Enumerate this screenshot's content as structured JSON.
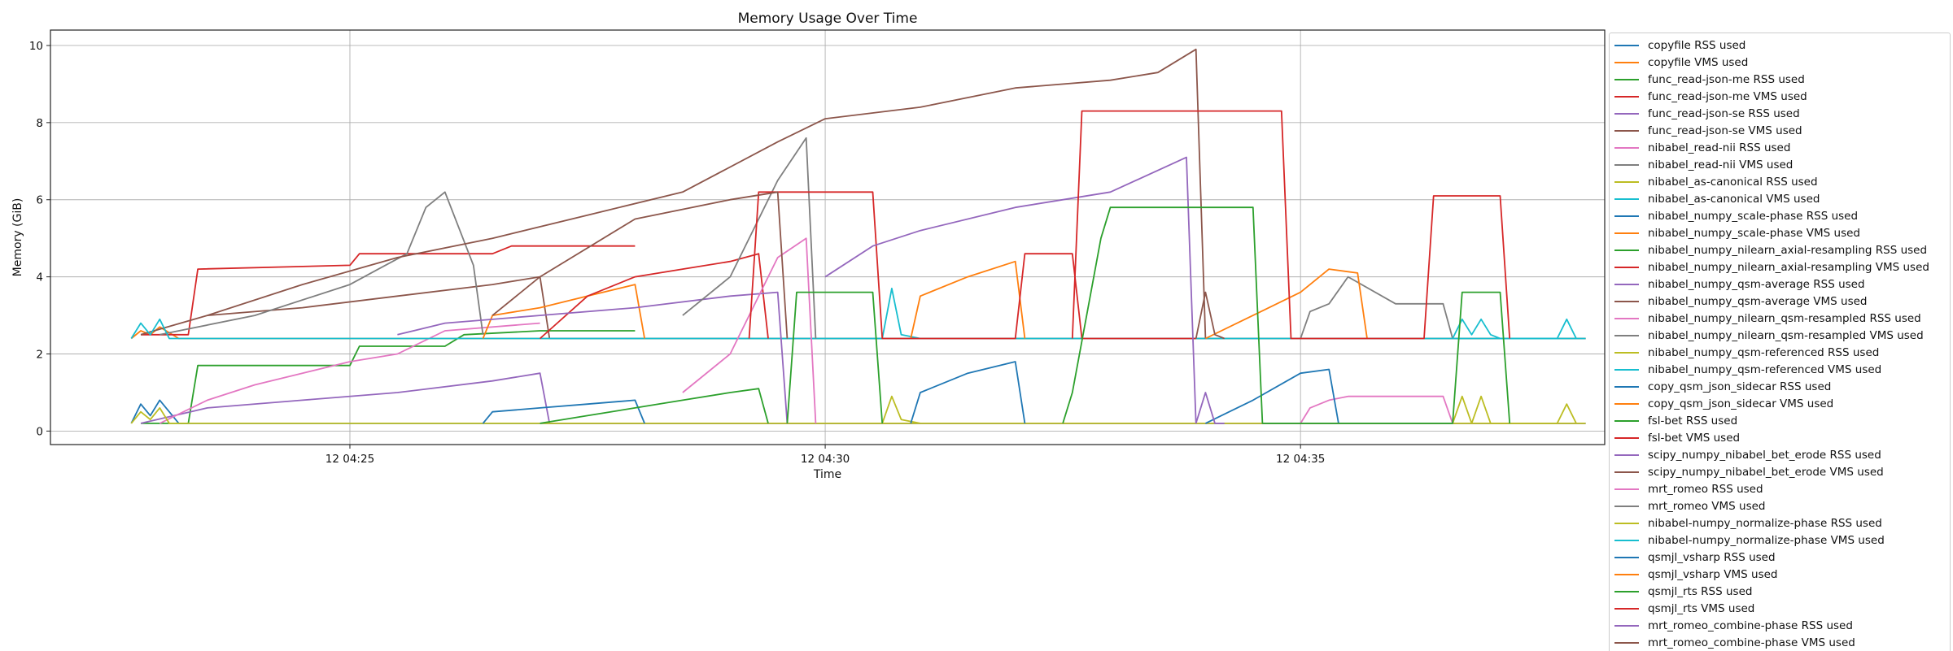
{
  "chart_data": {
    "type": "line",
    "title": "Memory Usage Over Time",
    "xlabel": "Time",
    "ylabel": "Memory (GiB)",
    "x_ticks": [
      "12 04:25",
      "12 04:30",
      "12 04:35"
    ],
    "x_tick_minutes": [
      25,
      30,
      35
    ],
    "xlim_minutes": [
      21.85,
      38.2
    ],
    "y_ticks": [
      "0",
      "2",
      "4",
      "6",
      "8",
      "10"
    ],
    "ylim": [
      -0.35,
      10.4
    ],
    "grid": true,
    "legend_position": "outside-right",
    "series": [
      {
        "name": "copyfile RSS used",
        "color": "#1f77b4",
        "x": [
          22.7,
          22.8,
          22.9,
          23.0,
          23.2,
          38.0
        ],
        "y": [
          0.2,
          0.7,
          0.4,
          0.8,
          0.2,
          0.2
        ]
      },
      {
        "name": "copyfile VMS used",
        "color": "#ff7f0e",
        "x": [
          22.7,
          22.8,
          22.9,
          23.0,
          23.2,
          38.0
        ],
        "y": [
          2.4,
          2.6,
          2.5,
          2.7,
          2.4,
          2.4
        ]
      },
      {
        "name": "func_read-json-me RSS used",
        "color": "#2ca02c",
        "x": [
          22.8,
          23.3,
          23.4,
          25.0,
          25.1,
          26.0,
          26.2,
          27.0,
          27.2,
          28.0
        ],
        "y": [
          0.2,
          0.2,
          1.7,
          1.7,
          2.2,
          2.2,
          2.5,
          2.6,
          2.6,
          2.6
        ]
      },
      {
        "name": "func_read-json-me VMS used",
        "color": "#d62728",
        "x": [
          22.8,
          23.3,
          23.4,
          25.0,
          25.1,
          26.5,
          26.7,
          28.0
        ],
        "y": [
          2.5,
          2.5,
          4.2,
          4.3,
          4.6,
          4.6,
          4.8,
          4.8
        ]
      },
      {
        "name": "func_read-json-se RSS used",
        "color": "#9467bd",
        "x": [
          22.8,
          23.5,
          24.5,
          25.5,
          26.5,
          27.0,
          27.1,
          38.0
        ],
        "y": [
          0.2,
          0.6,
          0.8,
          1.0,
          1.3,
          1.5,
          0.2,
          0.2
        ]
      },
      {
        "name": "func_read-json-se VMS used",
        "color": "#8c564b",
        "x": [
          22.8,
          23.5,
          24.5,
          25.5,
          26.5,
          27.0,
          27.1,
          38.0
        ],
        "y": [
          2.5,
          3.0,
          3.2,
          3.5,
          3.8,
          4.0,
          2.4,
          2.4
        ]
      },
      {
        "name": "nibabel_read-nii RSS used",
        "color": "#e377c2",
        "x": [
          23.0,
          23.5,
          24.0,
          24.5,
          25.0,
          25.5,
          26.0,
          27.0
        ],
        "y": [
          0.2,
          0.8,
          1.2,
          1.5,
          1.8,
          2.0,
          2.6,
          2.8
        ]
      },
      {
        "name": "nibabel_read-nii VMS used",
        "color": "#7f7f7f",
        "x": [
          23.0,
          24.0,
          25.0,
          25.3,
          25.6,
          25.8,
          26.0,
          26.3,
          26.4
        ],
        "y": [
          2.5,
          3.0,
          3.8,
          4.2,
          4.6,
          5.8,
          6.2,
          4.3,
          2.5
        ]
      },
      {
        "name": "nibabel_as-canonical RSS used",
        "color": "#bcbd22",
        "x": [
          22.7,
          22.8,
          22.9,
          23.0,
          23.1,
          38.0
        ],
        "y": [
          0.2,
          0.5,
          0.3,
          0.6,
          0.2,
          0.2
        ]
      },
      {
        "name": "nibabel_as-canonical VMS used",
        "color": "#17becf",
        "x": [
          22.7,
          22.8,
          22.9,
          23.0,
          23.1,
          38.0
        ],
        "y": [
          2.4,
          2.8,
          2.5,
          2.9,
          2.4,
          2.4
        ]
      },
      {
        "name": "nibabel_numpy_scale-phase RSS used",
        "color": "#1f77b4",
        "x": [
          26.4,
          26.5,
          27.0,
          27.5,
          28.0,
          28.1
        ],
        "y": [
          0.2,
          0.5,
          0.6,
          0.7,
          0.8,
          0.2
        ]
      },
      {
        "name": "nibabel_numpy_scale-phase VMS used",
        "color": "#ff7f0e",
        "x": [
          26.4,
          26.5,
          27.0,
          27.5,
          28.0,
          28.1
        ],
        "y": [
          2.4,
          3.0,
          3.2,
          3.5,
          3.8,
          2.4
        ]
      },
      {
        "name": "nibabel_numpy_nilearn_axial-resampling RSS used",
        "color": "#2ca02c",
        "x": [
          27.0,
          27.5,
          28.0,
          28.5,
          29.0,
          29.3,
          29.4
        ],
        "y": [
          0.2,
          0.4,
          0.6,
          0.8,
          1.0,
          1.1,
          0.2
        ]
      },
      {
        "name": "nibabel_numpy_nilearn_axial-resampling VMS used",
        "color": "#d62728",
        "x": [
          27.0,
          27.5,
          28.0,
          28.5,
          29.0,
          29.3,
          29.4
        ],
        "y": [
          2.4,
          3.5,
          4.0,
          4.2,
          4.4,
          4.6,
          2.4
        ]
      },
      {
        "name": "nibabel_numpy_qsm-average RSS used",
        "color": "#9467bd",
        "x": [
          25.5,
          26.0,
          27.0,
          28.0,
          29.0,
          29.5,
          29.6
        ],
        "y": [
          2.5,
          2.8,
          3.0,
          3.2,
          3.5,
          3.6,
          0.2
        ]
      },
      {
        "name": "nibabel_numpy_qsm-average VMS used",
        "color": "#8c564b",
        "x": [
          23.5,
          24.5,
          25.5,
          26.5,
          27.5,
          28.5,
          29.5,
          30.0,
          31.0,
          32.0,
          33.0,
          33.5,
          33.9,
          34.0
        ],
        "y": [
          3.0,
          3.8,
          4.5,
          5.0,
          5.6,
          6.2,
          7.5,
          8.1,
          8.4,
          8.9,
          9.1,
          9.3,
          9.9,
          2.4
        ]
      },
      {
        "name": "nibabel_numpy_nilearn_qsm-resampled RSS used",
        "color": "#e377c2",
        "x": [
          28.5,
          29.0,
          29.5,
          29.8,
          29.9
        ],
        "y": [
          1.0,
          2.0,
          4.5,
          5.0,
          0.2
        ]
      },
      {
        "name": "nibabel_numpy_nilearn_qsm-resampled VMS used",
        "color": "#7f7f7f",
        "x": [
          28.5,
          29.0,
          29.5,
          29.8,
          29.9
        ],
        "y": [
          3.0,
          4.0,
          6.5,
          7.6,
          2.4
        ]
      },
      {
        "name": "nibabel_numpy_qsm-referenced RSS used",
        "color": "#bcbd22",
        "x": [
          30.6,
          30.7,
          30.8,
          31.0
        ],
        "y": [
          0.2,
          0.9,
          0.3,
          0.2
        ]
      },
      {
        "name": "nibabel_numpy_qsm-referenced VMS used",
        "color": "#17becf",
        "x": [
          30.6,
          30.7,
          30.8,
          31.0
        ],
        "y": [
          2.4,
          3.7,
          2.5,
          2.4
        ]
      },
      {
        "name": "copy_qsm_json_sidecar RSS used",
        "color": "#1f77b4",
        "x": [
          30.9,
          31.0,
          31.5,
          32.0,
          32.1
        ],
        "y": [
          0.2,
          1.0,
          1.5,
          1.8,
          0.2
        ]
      },
      {
        "name": "copy_qsm_json_sidecar VMS used",
        "color": "#ff7f0e",
        "x": [
          30.9,
          31.0,
          31.5,
          32.0,
          32.1
        ],
        "y": [
          2.4,
          3.5,
          4.0,
          4.4,
          2.4
        ]
      },
      {
        "name": "fsl-bet RSS used",
        "color": "#2ca02c",
        "x": [
          29.6,
          29.7,
          30.5,
          30.6
        ],
        "y": [
          0.2,
          3.6,
          3.6,
          0.2
        ]
      },
      {
        "name": "fsl-bet VMS used",
        "color": "#d62728",
        "x": [
          29.2,
          29.3,
          30.5,
          30.6,
          32.0,
          32.1,
          32.6,
          32.7,
          33.8,
          33.9
        ],
        "y": [
          2.4,
          6.2,
          6.2,
          2.4,
          2.4,
          4.6,
          4.6,
          2.4,
          2.4,
          2.4
        ]
      },
      {
        "name": "scipy_numpy_nibabel_bet_erode RSS used",
        "color": "#9467bd",
        "x": [
          30.0,
          30.5,
          31.0,
          32.0,
          33.0,
          33.8,
          33.9
        ],
        "y": [
          4.0,
          4.8,
          5.2,
          5.8,
          6.2,
          7.1,
          0.2
        ]
      },
      {
        "name": "scipy_numpy_nibabel_bet_erode VMS used",
        "color": "#8c564b",
        "x": [
          26.5,
          27.0,
          28.0,
          29.0,
          29.5,
          29.6
        ],
        "y": [
          3.0,
          4.0,
          5.5,
          6.0,
          6.2,
          2.4
        ]
      },
      {
        "name": "mrt_romeo RSS used",
        "color": "#e377c2",
        "x": [
          35.0,
          35.1,
          35.3,
          35.5,
          36.5,
          36.6
        ],
        "y": [
          0.2,
          0.6,
          0.8,
          0.9,
          0.9,
          0.2
        ]
      },
      {
        "name": "mrt_romeo VMS used",
        "color": "#7f7f7f",
        "x": [
          35.0,
          35.1,
          35.3,
          35.5,
          36.0,
          36.5,
          36.6
        ],
        "y": [
          2.4,
          3.1,
          3.3,
          4.0,
          3.3,
          3.3,
          2.4
        ]
      },
      {
        "name": "nibabel-numpy_normalize-phase RSS used",
        "color": "#bcbd22",
        "x": [
          36.6,
          36.7,
          36.8,
          36.9,
          37.0,
          37.1,
          37.7,
          37.8,
          37.9
        ],
        "y": [
          0.2,
          0.9,
          0.2,
          0.9,
          0.2,
          0.2,
          0.2,
          0.7,
          0.2
        ]
      },
      {
        "name": "nibabel-numpy_normalize-phase VMS used",
        "color": "#17becf",
        "x": [
          36.6,
          36.7,
          36.8,
          36.9,
          37.0,
          37.1,
          37.7,
          37.8,
          37.9
        ],
        "y": [
          2.4,
          2.9,
          2.5,
          2.9,
          2.5,
          2.4,
          2.4,
          2.9,
          2.4
        ]
      },
      {
        "name": "qsmjl_vsharp RSS used",
        "color": "#1f77b4",
        "x": [
          34.0,
          34.5,
          35.0,
          35.3,
          35.4
        ],
        "y": [
          0.2,
          0.8,
          1.5,
          1.6,
          0.2
        ]
      },
      {
        "name": "qsmjl_vsharp VMS used",
        "color": "#ff7f0e",
        "x": [
          34.0,
          34.5,
          35.0,
          35.3,
          35.6,
          35.7
        ],
        "y": [
          2.4,
          3.0,
          3.6,
          4.2,
          4.1,
          2.4
        ]
      },
      {
        "name": "qsmjl_rts RSS used",
        "color": "#2ca02c",
        "x": [
          32.5,
          32.6,
          32.9,
          33.0,
          34.5,
          34.6,
          36.6,
          36.7,
          37.1,
          37.2
        ],
        "y": [
          0.2,
          1.0,
          5.0,
          5.8,
          5.8,
          0.2,
          0.2,
          3.6,
          3.6,
          0.2
        ]
      },
      {
        "name": "qsmjl_rts VMS used",
        "color": "#d62728",
        "x": [
          32.6,
          32.7,
          34.8,
          34.9,
          36.3,
          36.4,
          37.1,
          37.2
        ],
        "y": [
          2.4,
          8.3,
          8.3,
          2.4,
          2.4,
          6.1,
          6.1,
          2.4
        ]
      },
      {
        "name": "mrt_romeo_combine-phase RSS used",
        "color": "#9467bd",
        "x": [
          33.9,
          34.0,
          34.1,
          34.2
        ],
        "y": [
          0.2,
          1.0,
          0.2,
          0.2
        ]
      },
      {
        "name": "mrt_romeo_combine-phase VMS used",
        "color": "#8c564b",
        "x": [
          33.9,
          34.0,
          34.1,
          34.2
        ],
        "y": [
          2.4,
          3.6,
          2.5,
          2.4
        ]
      }
    ]
  }
}
